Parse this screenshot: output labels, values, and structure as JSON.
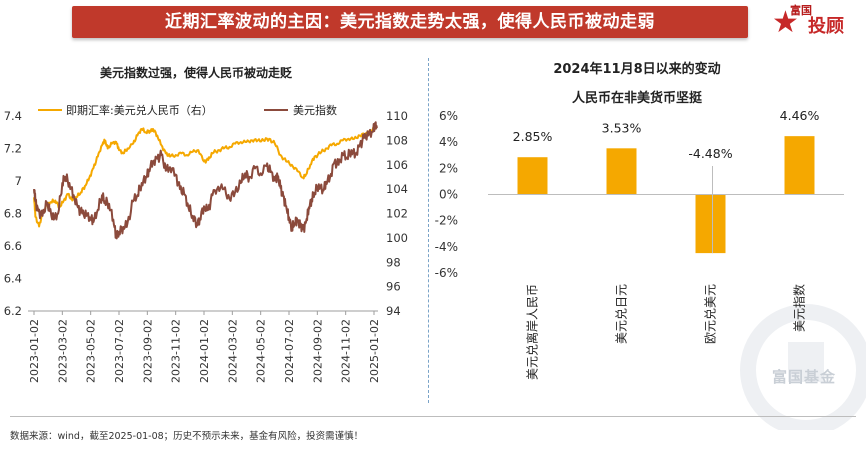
{
  "header": {
    "title": "近期汇率波动的主因：美元指数走势太强，使得人民币被动走弱",
    "logo_top": "富国",
    "logo_main": "投顾"
  },
  "footer": {
    "source": "数据来源：wind，截至2025-01-08；历史不预示未来，基金有风险，投资需谨慎！"
  },
  "watermark": {
    "text": "富国基金"
  },
  "colors": {
    "banner": "#c0392b",
    "orange": "#f5a800",
    "brown": "#8b4a3c"
  },
  "chart_data": [
    {
      "type": "line",
      "title": "美元指数过强，使得人民币被动走贬",
      "legend": [
        "即期汇率:美元兑人民币（右）",
        "美元指数"
      ],
      "x_tick_labels": [
        "2023-01-02",
        "2023-03-02",
        "2023-05-02",
        "2023-07-02",
        "2023-09-02",
        "2023-11-02",
        "2024-01-02",
        "2024-03-02",
        "2024-05-02",
        "2024-07-02",
        "2024-09-02",
        "2024-11-02",
        "2025-01-02"
      ],
      "left_axis": {
        "ticks": [
          "6.2",
          "6.4",
          "6.6",
          "6.8",
          "7",
          "7.2",
          "7.4"
        ],
        "range": [
          6.2,
          7.4
        ]
      },
      "right_axis": {
        "ticks": [
          "94",
          "96",
          "98",
          "100",
          "102",
          "104",
          "106",
          "108",
          "110"
        ],
        "range": [
          94,
          110
        ]
      },
      "series": [
        {
          "name": "即期汇率:美元兑人民币（右）",
          "axis": "left",
          "color": "#f5a800",
          "points": [
            [
              0,
              6.9
            ],
            [
              0.05,
              6.78
            ],
            [
              0.18,
              6.72
            ],
            [
              0.3,
              6.8
            ],
            [
              0.45,
              6.85
            ],
            [
              0.6,
              6.87
            ],
            [
              0.75,
              6.88
            ],
            [
              0.9,
              6.84
            ],
            [
              1.05,
              6.88
            ],
            [
              1.2,
              6.92
            ],
            [
              1.35,
              6.88
            ],
            [
              1.5,
              6.9
            ],
            [
              1.65,
              6.93
            ],
            [
              1.8,
              6.97
            ],
            [
              1.95,
              7.02
            ],
            [
              2.1,
              7.08
            ],
            [
              2.25,
              7.15
            ],
            [
              2.4,
              7.22
            ],
            [
              2.5,
              7.25
            ],
            [
              2.6,
              7.2
            ],
            [
              2.75,
              7.23
            ],
            [
              2.9,
              7.24
            ],
            [
              3.0,
              7.19
            ],
            [
              3.15,
              7.17
            ],
            [
              3.3,
              7.2
            ],
            [
              3.5,
              7.23
            ],
            [
              3.65,
              7.28
            ],
            [
              3.8,
              7.32
            ],
            [
              3.95,
              7.3
            ],
            [
              4.1,
              7.31
            ],
            [
              4.2,
              7.32
            ],
            [
              4.35,
              7.28
            ],
            [
              4.5,
              7.22
            ],
            [
              4.65,
              7.17
            ],
            [
              4.8,
              7.15
            ],
            [
              5.0,
              7.16
            ],
            [
              5.2,
              7.17
            ],
            [
              5.4,
              7.16
            ],
            [
              5.6,
              7.18
            ],
            [
              5.8,
              7.19
            ],
            [
              6.0,
              7.12
            ],
            [
              6.15,
              7.13
            ],
            [
              6.3,
              7.17
            ],
            [
              6.5,
              7.19
            ],
            [
              6.7,
              7.2
            ],
            [
              6.9,
              7.21
            ],
            [
              7.1,
              7.23
            ],
            [
              7.3,
              7.24
            ],
            [
              7.5,
              7.24
            ],
            [
              7.7,
              7.25
            ],
            [
              7.9,
              7.25
            ],
            [
              8.1,
              7.25
            ],
            [
              8.3,
              7.26
            ],
            [
              8.5,
              7.23
            ],
            [
              8.7,
              7.16
            ],
            [
              8.9,
              7.12
            ],
            [
              9.1,
              7.1
            ],
            [
              9.3,
              7.06
            ],
            [
              9.5,
              7.02
            ],
            [
              9.6,
              7.04
            ],
            [
              9.75,
              7.1
            ],
            [
              9.9,
              7.15
            ],
            [
              10.1,
              7.17
            ],
            [
              10.3,
              7.2
            ],
            [
              10.5,
              7.22
            ],
            [
              10.7,
              7.23
            ],
            [
              10.9,
              7.25
            ],
            [
              11.1,
              7.26
            ],
            [
              11.3,
              7.26
            ],
            [
              11.5,
              7.28
            ],
            [
              11.7,
              7.29
            ],
            [
              11.85,
              7.3
            ],
            [
              12.0,
              7.32
            ],
            [
              12.1,
              7.33
            ]
          ]
        },
        {
          "name": "美元指数",
          "axis": "right",
          "color": "#8b4a3c",
          "points": [
            [
              0,
              104.0
            ],
            [
              0.05,
              103.0
            ],
            [
              0.15,
              102.2
            ],
            [
              0.3,
              101.8
            ],
            [
              0.45,
              102.8
            ],
            [
              0.55,
              102.2
            ],
            [
              0.7,
              101.5
            ],
            [
              0.85,
              102.0
            ],
            [
              1.0,
              104.5
            ],
            [
              1.1,
              105.0
            ],
            [
              1.25,
              104.5
            ],
            [
              1.4,
              103.5
            ],
            [
              1.55,
              102.5
            ],
            [
              1.7,
              102.0
            ],
            [
              1.85,
              101.8
            ],
            [
              2.0,
              101.6
            ],
            [
              2.1,
              101.3
            ],
            [
              2.25,
              102.3
            ],
            [
              2.4,
              103.5
            ],
            [
              2.5,
              103.0
            ],
            [
              2.65,
              102.8
            ],
            [
              2.8,
              101.5
            ],
            [
              2.9,
              100.2
            ],
            [
              3.0,
              100.5
            ],
            [
              3.15,
              100.9
            ],
            [
              3.3,
              101.2
            ],
            [
              3.5,
              103.0
            ],
            [
              3.65,
              103.5
            ],
            [
              3.8,
              104.5
            ],
            [
              3.95,
              105.0
            ],
            [
              4.05,
              105.6
            ],
            [
              4.2,
              106.3
            ],
            [
              4.35,
              106.5
            ],
            [
              4.5,
              106.8
            ],
            [
              4.65,
              105.5
            ],
            [
              4.8,
              105.8
            ],
            [
              5.0,
              105.2
            ],
            [
              5.15,
              104.0
            ],
            [
              5.3,
              103.6
            ],
            [
              5.45,
              102.5
            ],
            [
              5.6,
              101.8
            ],
            [
              5.75,
              101.2
            ],
            [
              5.85,
              101.6
            ],
            [
              6.0,
              102.6
            ],
            [
              6.15,
              102.3
            ],
            [
              6.3,
              103.5
            ],
            [
              6.5,
              104.2
            ],
            [
              6.7,
              104.0
            ],
            [
              6.9,
              103.2
            ],
            [
              7.1,
              103.8
            ],
            [
              7.3,
              104.5
            ],
            [
              7.45,
              105.3
            ],
            [
              7.6,
              105.0
            ],
            [
              7.8,
              105.7
            ],
            [
              8.0,
              105.3
            ],
            [
              8.2,
              105.9
            ],
            [
              8.35,
              105.4
            ],
            [
              8.5,
              104.7
            ],
            [
              8.6,
              105.0
            ],
            [
              8.7,
              104.1
            ],
            [
              8.8,
              103.4
            ],
            [
              8.9,
              102.6
            ],
            [
              9.0,
              101.7
            ],
            [
              9.1,
              100.8
            ],
            [
              9.2,
              101.2
            ],
            [
              9.3,
              101.4
            ],
            [
              9.4,
              100.9
            ],
            [
              9.5,
              100.7
            ],
            [
              9.6,
              101.3
            ],
            [
              9.7,
              102.5
            ],
            [
              9.8,
              103.2
            ],
            [
              9.9,
              103.7
            ],
            [
              10.05,
              104.4
            ],
            [
              10.2,
              103.9
            ],
            [
              10.3,
              104.6
            ],
            [
              10.45,
              105.0
            ],
            [
              10.6,
              106.2
            ],
            [
              10.75,
              106.0
            ],
            [
              10.9,
              106.8
            ],
            [
              11.05,
              106.6
            ],
            [
              11.2,
              107.2
            ],
            [
              11.35,
              106.9
            ],
            [
              11.5,
              107.6
            ],
            [
              11.65,
              108.2
            ],
            [
              11.8,
              108.4
            ],
            [
              11.95,
              108.7
            ],
            [
              12.05,
              109.3
            ],
            [
              12.1,
              109.0
            ]
          ]
        }
      ]
    },
    {
      "type": "bar",
      "title": "2024年11月8日以来的变动",
      "subtitle": "人民币在非美货币坚挺",
      "categories": [
        "美元兑离岸人民币",
        "美元兑日元",
        "欧元兑美元",
        "美元指数"
      ],
      "values": [
        2.85,
        3.53,
        -4.48,
        4.46
      ],
      "value_labels": [
        "2.85%",
        "3.53%",
        "-4.48%",
        "4.46%"
      ],
      "y_ticks": [
        "6%",
        "4%",
        "2%",
        "0%",
        "-2%",
        "-4%",
        "-6%"
      ],
      "ylim": [
        -6,
        6
      ],
      "color": "#f5a800"
    }
  ]
}
